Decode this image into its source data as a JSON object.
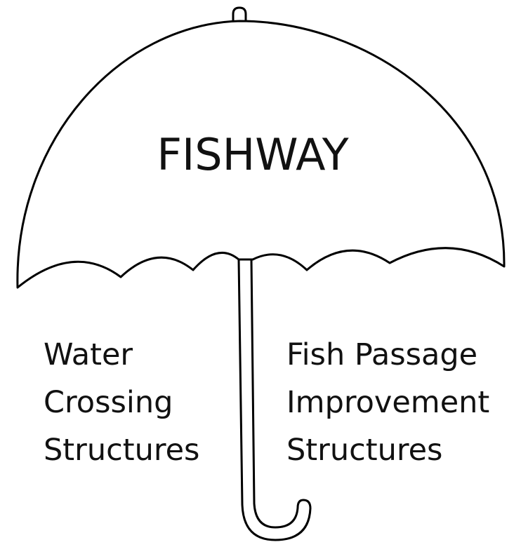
{
  "umbrella": {
    "label": "FISHWAY"
  },
  "left_label": {
    "lines": [
      "Water",
      "Crossing",
      "Structures"
    ]
  },
  "right_label": {
    "lines": [
      "Fish Passage",
      "Improvement",
      "Structures"
    ]
  }
}
